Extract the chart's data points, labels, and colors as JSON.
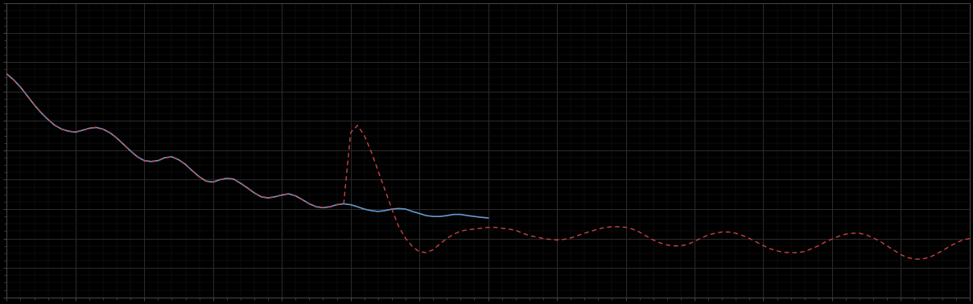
{
  "background_color": "#000000",
  "plot_bg_color": "#000000",
  "grid_color": "#2a2a2a",
  "blue_line_color": "#6699cc",
  "red_line_color": "#cc4444",
  "xlim": [
    0,
    140
  ],
  "ylim": [
    0,
    10
  ],
  "blue_x": [
    0,
    1,
    2,
    3,
    4,
    5,
    6,
    7,
    8,
    9,
    10,
    11,
    12,
    13,
    14,
    15,
    16,
    17,
    18,
    19,
    20,
    21,
    22,
    23,
    24,
    25,
    26,
    27,
    28,
    29,
    30,
    31,
    32,
    33,
    34,
    35,
    36,
    37,
    38,
    39,
    40,
    41,
    42,
    43,
    44,
    45,
    46,
    47,
    48,
    49,
    50,
    51,
    52,
    53,
    54,
    55,
    56,
    57,
    58,
    59,
    60,
    61,
    62,
    63,
    64,
    65,
    66,
    67,
    68,
    69,
    70
  ],
  "blue_y": [
    7.6,
    7.4,
    7.15,
    6.85,
    6.55,
    6.28,
    6.05,
    5.85,
    5.72,
    5.65,
    5.62,
    5.68,
    5.75,
    5.78,
    5.72,
    5.6,
    5.42,
    5.2,
    4.98,
    4.78,
    4.65,
    4.62,
    4.65,
    4.75,
    4.78,
    4.68,
    4.52,
    4.3,
    4.1,
    3.95,
    3.92,
    4.0,
    4.05,
    4.02,
    3.88,
    3.72,
    3.55,
    3.42,
    3.38,
    3.42,
    3.48,
    3.52,
    3.45,
    3.32,
    3.18,
    3.08,
    3.05,
    3.08,
    3.15,
    3.18,
    3.15,
    3.08,
    3.0,
    2.95,
    2.92,
    2.95,
    3.0,
    3.02,
    3.0,
    2.92,
    2.85,
    2.78,
    2.75,
    2.75,
    2.78,
    2.82,
    2.82,
    2.78,
    2.75,
    2.72,
    2.7
  ],
  "red_x": [
    0,
    1,
    2,
    3,
    4,
    5,
    6,
    7,
    8,
    9,
    10,
    11,
    12,
    13,
    14,
    15,
    16,
    17,
    18,
    19,
    20,
    21,
    22,
    23,
    24,
    25,
    26,
    27,
    28,
    29,
    30,
    31,
    32,
    33,
    34,
    35,
    36,
    37,
    38,
    39,
    40,
    41,
    42,
    43,
    44,
    45,
    46,
    47,
    48,
    49,
    50,
    51,
    52,
    53,
    54,
    55,
    56,
    57,
    58,
    59,
    60,
    61,
    62,
    63,
    64,
    65,
    66,
    67,
    68,
    69,
    70,
    71,
    72,
    73,
    74,
    75,
    76,
    77,
    78,
    79,
    80,
    81,
    82,
    83,
    84,
    85,
    86,
    87,
    88,
    89,
    90,
    91,
    92,
    93,
    94,
    95,
    96,
    97,
    98,
    99,
    100,
    101,
    102,
    103,
    104,
    105,
    106,
    107,
    108,
    109,
    110,
    111,
    112,
    113,
    114,
    115,
    116,
    117,
    118,
    119,
    120,
    121,
    122,
    123,
    124,
    125,
    126,
    127,
    128,
    129,
    130,
    131,
    132,
    133,
    134,
    135,
    136,
    137,
    138,
    139,
    140
  ],
  "red_y": [
    7.6,
    7.4,
    7.15,
    6.85,
    6.55,
    6.28,
    6.05,
    5.85,
    5.72,
    5.65,
    5.62,
    5.68,
    5.75,
    5.78,
    5.72,
    5.6,
    5.42,
    5.2,
    4.98,
    4.78,
    4.65,
    4.62,
    4.65,
    4.75,
    4.78,
    4.68,
    4.52,
    4.3,
    4.1,
    3.95,
    3.92,
    4.0,
    4.05,
    4.02,
    3.88,
    3.72,
    3.55,
    3.42,
    3.38,
    3.42,
    3.48,
    3.52,
    3.45,
    3.32,
    3.18,
    3.08,
    3.05,
    3.08,
    3.15,
    3.18,
    5.6,
    5.85,
    5.5,
    4.95,
    4.3,
    3.65,
    3.0,
    2.4,
    2.0,
    1.72,
    1.55,
    1.52,
    1.62,
    1.82,
    2.0,
    2.15,
    2.25,
    2.3,
    2.32,
    2.35,
    2.38,
    2.38,
    2.35,
    2.32,
    2.28,
    2.18,
    2.1,
    2.05,
    2.0,
    1.97,
    1.95,
    1.97,
    2.02,
    2.1,
    2.18,
    2.25,
    2.32,
    2.38,
    2.4,
    2.4,
    2.38,
    2.32,
    2.22,
    2.08,
    1.95,
    1.85,
    1.78,
    1.75,
    1.75,
    1.8,
    1.9,
    2.02,
    2.12,
    2.18,
    2.22,
    2.22,
    2.18,
    2.1,
    2.0,
    1.88,
    1.76,
    1.65,
    1.58,
    1.53,
    1.52,
    1.52,
    1.56,
    1.65,
    1.75,
    1.88,
    1.98,
    2.08,
    2.15,
    2.18,
    2.18,
    2.12,
    2.02,
    1.9,
    1.75,
    1.6,
    1.45,
    1.35,
    1.3,
    1.3,
    1.35,
    1.45,
    1.58,
    1.72,
    1.85,
    1.95,
    2.0
  ]
}
